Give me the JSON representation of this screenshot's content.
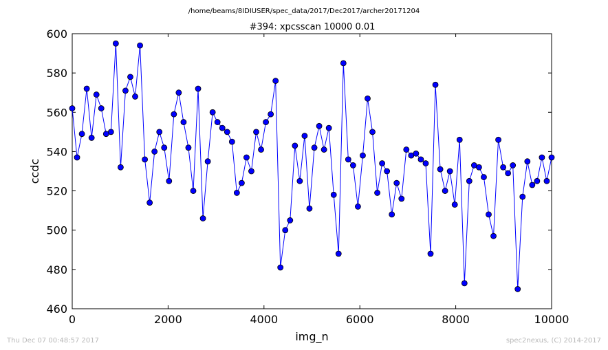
{
  "chart_data": {
    "type": "line",
    "suptitle": "/home/beams/8IDIUSER/spec_data/2017/Dec2017/archer20171204",
    "title": "#394: xpcsscan 10000 0.01",
    "xlabel": "img_n",
    "ylabel": "ccdc",
    "xlim": [
      0,
      10000
    ],
    "ylim": [
      460,
      600
    ],
    "xticks": [
      0,
      2000,
      4000,
      6000,
      8000,
      10000
    ],
    "yticks": [
      460,
      480,
      500,
      520,
      540,
      560,
      580,
      600
    ],
    "xtick_labels": [
      "0",
      "2000",
      "4000",
      "6000",
      "8000",
      "10000"
    ],
    "ytick_labels": [
      "460",
      "480",
      "500",
      "520",
      "540",
      "560",
      "580",
      "600"
    ],
    "grid": false,
    "color": "#0000ff",
    "marker": "circle",
    "series": [
      {
        "x": [
          0,
          101,
          202,
          303,
          404,
          505,
          606,
          707,
          808,
          909,
          1010,
          1111,
          1212,
          1313,
          1414,
          1515,
          1616,
          1717,
          1818,
          1919,
          2020,
          2121,
          2222,
          2323,
          2424,
          2525,
          2626,
          2727,
          2828,
          2929,
          3030,
          3131,
          3232,
          3333,
          3434,
          3535,
          3636,
          3737,
          3838,
          3939,
          4040,
          4141,
          4242,
          4343,
          4444,
          4545,
          4646,
          4747,
          4848,
          4949,
          5051,
          5152,
          5253,
          5354,
          5455,
          5556,
          5657,
          5758,
          5859,
          5960,
          6061,
          6162,
          6263,
          6364,
          6465,
          6566,
          6667,
          6768,
          6869,
          6970,
          7071,
          7172,
          7273,
          7374,
          7475,
          7576,
          7677,
          7778,
          7879,
          7980,
          8081,
          8182,
          8283,
          8384,
          8485,
          8586,
          8687,
          8788,
          8889,
          8990,
          9091,
          9192,
          9293,
          9394,
          9495,
          9596,
          9697,
          9798,
          9899,
          10000
        ],
        "y": [
          562,
          537,
          549,
          572,
          547,
          569,
          562,
          549,
          550,
          595,
          532,
          571,
          578,
          568,
          594,
          536,
          514,
          540,
          550,
          542,
          525,
          559,
          570,
          555,
          542,
          520,
          572,
          506,
          535,
          560,
          555,
          552,
          550,
          545,
          519,
          524,
          537,
          530,
          550,
          541,
          555,
          559,
          576,
          481,
          500,
          505,
          543,
          525,
          548,
          511,
          542,
          553,
          541,
          552,
          518,
          488,
          585,
          536,
          533,
          512,
          538,
          567,
          550,
          519,
          534,
          530,
          508,
          524,
          516,
          541,
          538,
          539,
          536,
          534,
          488,
          574,
          531,
          520,
          530,
          513,
          546,
          473,
          525,
          533,
          532,
          527,
          508,
          497,
          546,
          532,
          529,
          533,
          470,
          517,
          535,
          523,
          525,
          537,
          525,
          537
        ]
      }
    ]
  },
  "footer": {
    "left": "Thu Dec 07 00:48:57 2017",
    "right": "spec2nexus, (C) 2014-2017"
  }
}
